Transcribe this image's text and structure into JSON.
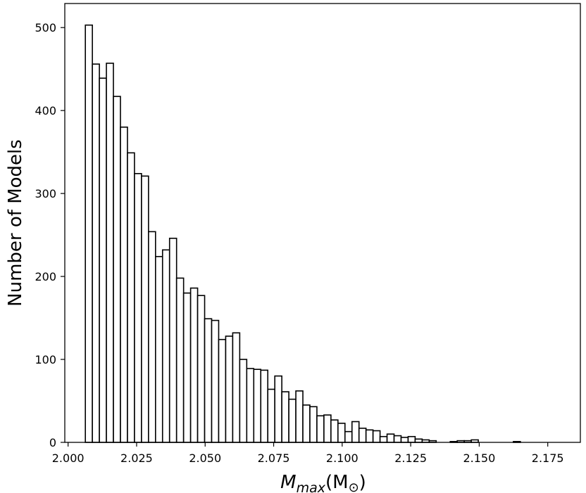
{
  "chart_data": {
    "type": "bar",
    "title": "",
    "ylabel": "Number of Models",
    "xlabel_main": "M",
    "xlabel_sub": "max",
    "xlabel_paren": "(M",
    "xlabel_sun": "⊙",
    "xlabel_close": ")",
    "xlim": [
      1.9988,
      2.1869
    ],
    "ylim": [
      0,
      529
    ],
    "xticks": [
      2.0,
      2.025,
      2.05,
      2.075,
      2.1,
      2.125,
      2.15,
      2.175
    ],
    "xtick_labels": [
      "2.000",
      "2.025",
      "2.050",
      "2.075",
      "2.100",
      "2.125",
      "2.150",
      "2.175"
    ],
    "yticks": [
      0,
      100,
      200,
      300,
      400,
      500
    ],
    "ytick_labels": [
      "0",
      "100",
      "200",
      "300",
      "400",
      "500"
    ],
    "bin_start": 2.0063,
    "bin_width": 0.00256,
    "values": [
      503,
      456,
      439,
      457,
      417,
      380,
      349,
      324,
      321,
      254,
      224,
      232,
      246,
      198,
      180,
      186,
      177,
      149,
      147,
      124,
      128,
      132,
      100,
      89,
      88,
      87,
      64,
      80,
      61,
      52,
      62,
      45,
      43,
      32,
      33,
      27,
      23,
      13,
      25,
      17,
      15,
      14,
      7,
      10,
      8,
      6,
      7,
      4,
      3,
      2,
      0,
      0,
      1,
      2,
      2,
      3,
      0,
      0,
      0,
      0,
      0,
      1
    ]
  }
}
